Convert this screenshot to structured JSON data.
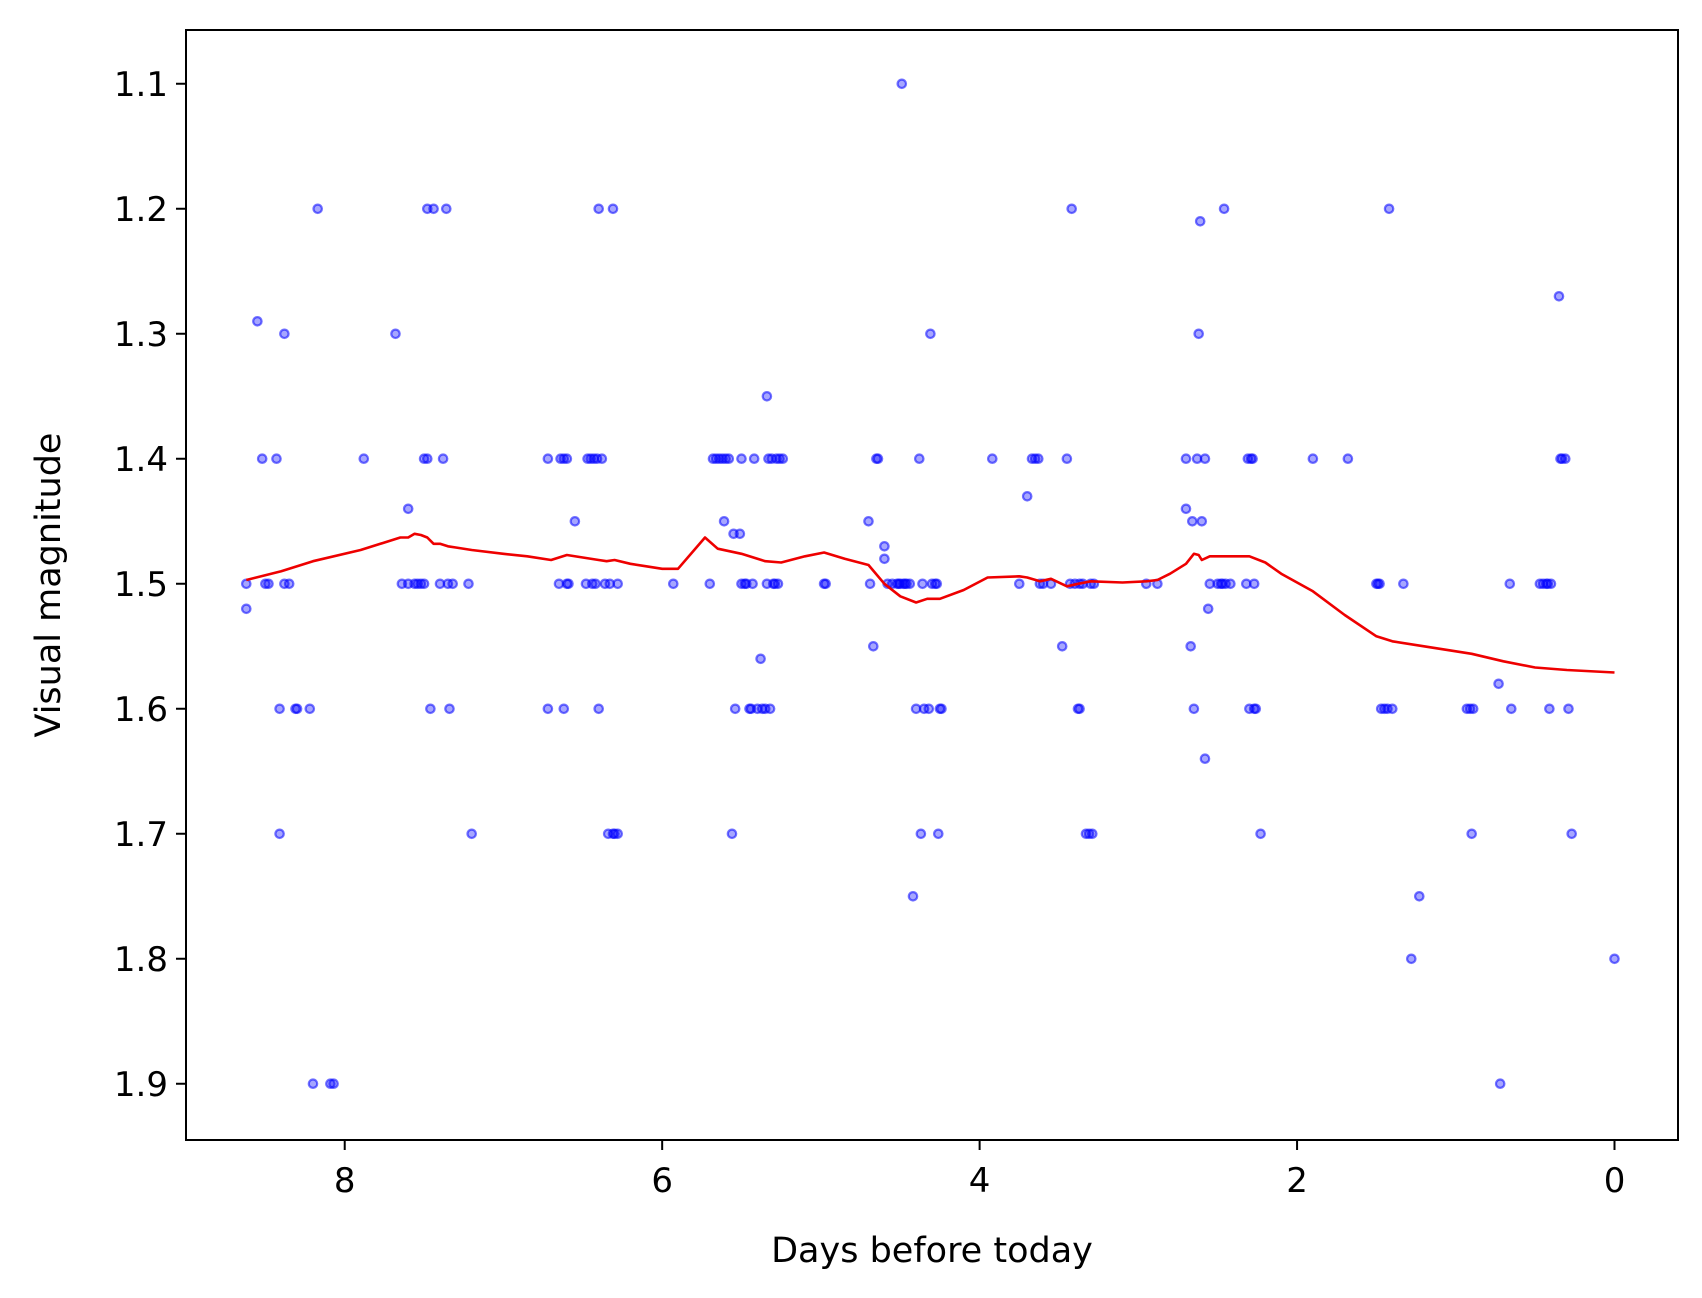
{
  "chart_data": {
    "type": "scatter",
    "xlabel": "Days before today",
    "ylabel": "Visual magnitude",
    "xlim": [
      9.0,
      -0.4
    ],
    "ylim": [
      1.945,
      1.057
    ],
    "x_inverted": true,
    "y_inverted": true,
    "grid": false,
    "x_ticks": [
      8,
      6,
      4,
      2,
      0
    ],
    "y_ticks": [
      1.1,
      1.2,
      1.3,
      1.4,
      1.5,
      1.6,
      1.7,
      1.8,
      1.9
    ],
    "x_tick_labels": [
      "8",
      "6",
      "4",
      "2",
      "0"
    ],
    "y_tick_labels": [
      "1.1",
      "1.2",
      "1.3",
      "1.4",
      "1.5",
      "1.6",
      "1.7",
      "1.8",
      "1.9"
    ],
    "series": [
      {
        "kind": "scatter",
        "color": "#0000ff",
        "points": [
          [
            8.62,
            1.5
          ],
          [
            8.62,
            1.52
          ],
          [
            8.55,
            1.29
          ],
          [
            8.52,
            1.4
          ],
          [
            8.5,
            1.5
          ],
          [
            8.48,
            1.5
          ],
          [
            8.43,
            1.4
          ],
          [
            8.41,
            1.7
          ],
          [
            8.41,
            1.6
          ],
          [
            8.38,
            1.3
          ],
          [
            8.38,
            1.5
          ],
          [
            8.35,
            1.5
          ],
          [
            8.31,
            1.6
          ],
          [
            8.3,
            1.6
          ],
          [
            8.22,
            1.6
          ],
          [
            8.2,
            1.9
          ],
          [
            8.17,
            1.2
          ],
          [
            8.09,
            1.9
          ],
          [
            8.07,
            1.9
          ],
          [
            7.88,
            1.4
          ],
          [
            7.68,
            1.3
          ],
          [
            7.64,
            1.5
          ],
          [
            7.6,
            1.44
          ],
          [
            7.6,
            1.5
          ],
          [
            7.56,
            1.5
          ],
          [
            7.54,
            1.5
          ],
          [
            7.52,
            1.5
          ],
          [
            7.5,
            1.5
          ],
          [
            7.5,
            1.4
          ],
          [
            7.48,
            1.4
          ],
          [
            7.48,
            1.2
          ],
          [
            7.46,
            1.6
          ],
          [
            7.44,
            1.2
          ],
          [
            7.4,
            1.5
          ],
          [
            7.38,
            1.4
          ],
          [
            7.36,
            1.2
          ],
          [
            7.35,
            1.5
          ],
          [
            7.34,
            1.6
          ],
          [
            7.32,
            1.5
          ],
          [
            7.22,
            1.5
          ],
          [
            7.2,
            1.7
          ],
          [
            6.72,
            1.4
          ],
          [
            6.72,
            1.6
          ],
          [
            6.65,
            1.5
          ],
          [
            6.64,
            1.4
          ],
          [
            6.62,
            1.4
          ],
          [
            6.62,
            1.6
          ],
          [
            6.6,
            1.5
          ],
          [
            6.6,
            1.4
          ],
          [
            6.59,
            1.5
          ],
          [
            6.55,
            1.45
          ],
          [
            6.48,
            1.5
          ],
          [
            6.47,
            1.4
          ],
          [
            6.45,
            1.4
          ],
          [
            6.44,
            1.5
          ],
          [
            6.43,
            1.4
          ],
          [
            6.42,
            1.5
          ],
          [
            6.41,
            1.4
          ],
          [
            6.4,
            1.6
          ],
          [
            6.4,
            1.2
          ],
          [
            6.38,
            1.4
          ],
          [
            6.36,
            1.5
          ],
          [
            6.34,
            1.7
          ],
          [
            6.33,
            1.5
          ],
          [
            6.31,
            1.2
          ],
          [
            6.31,
            1.7
          ],
          [
            6.3,
            1.7
          ],
          [
            6.28,
            1.5
          ],
          [
            6.28,
            1.7
          ],
          [
            5.93,
            1.5
          ],
          [
            5.7,
            1.5
          ],
          [
            5.68,
            1.4
          ],
          [
            5.66,
            1.4
          ],
          [
            5.64,
            1.4
          ],
          [
            5.62,
            1.4
          ],
          [
            5.61,
            1.45
          ],
          [
            5.6,
            1.4
          ],
          [
            5.58,
            1.4
          ],
          [
            5.56,
            1.7
          ],
          [
            5.55,
            1.46
          ],
          [
            5.54,
            1.6
          ],
          [
            5.51,
            1.46
          ],
          [
            5.5,
            1.5
          ],
          [
            5.5,
            1.4
          ],
          [
            5.48,
            1.5
          ],
          [
            5.47,
            1.5
          ],
          [
            5.45,
            1.6
          ],
          [
            5.44,
            1.6
          ],
          [
            5.43,
            1.5
          ],
          [
            5.42,
            1.4
          ],
          [
            5.4,
            1.6
          ],
          [
            5.38,
            1.56
          ],
          [
            5.37,
            1.6
          ],
          [
            5.35,
            1.6
          ],
          [
            5.34,
            1.35
          ],
          [
            5.34,
            1.5
          ],
          [
            5.33,
            1.4
          ],
          [
            5.32,
            1.6
          ],
          [
            5.31,
            1.4
          ],
          [
            5.3,
            1.5
          ],
          [
            5.29,
            1.5
          ],
          [
            5.28,
            1.4
          ],
          [
            5.27,
            1.5
          ],
          [
            5.26,
            1.4
          ],
          [
            5.24,
            1.4
          ],
          [
            4.98,
            1.5
          ],
          [
            4.97,
            1.5
          ],
          [
            4.7,
            1.45
          ],
          [
            4.69,
            1.5
          ],
          [
            4.67,
            1.55
          ],
          [
            4.65,
            1.4
          ],
          [
            4.64,
            1.4
          ],
          [
            4.6,
            1.47
          ],
          [
            4.6,
            1.48
          ],
          [
            4.58,
            1.5
          ],
          [
            4.55,
            1.5
          ],
          [
            4.52,
            1.5
          ],
          [
            4.51,
            1.5
          ],
          [
            4.5,
            1.5
          ],
          [
            4.49,
            1.1
          ],
          [
            4.48,
            1.5
          ],
          [
            4.47,
            1.5
          ],
          [
            4.46,
            1.5
          ],
          [
            4.44,
            1.5
          ],
          [
            4.42,
            1.75
          ],
          [
            4.4,
            1.6
          ],
          [
            4.38,
            1.4
          ],
          [
            4.37,
            1.7
          ],
          [
            4.36,
            1.5
          ],
          [
            4.35,
            1.6
          ],
          [
            4.32,
            1.6
          ],
          [
            4.31,
            1.3
          ],
          [
            4.3,
            1.5
          ],
          [
            4.28,
            1.5
          ],
          [
            4.27,
            1.5
          ],
          [
            4.26,
            1.7
          ],
          [
            4.25,
            1.6
          ],
          [
            4.24,
            1.6
          ],
          [
            3.92,
            1.4
          ],
          [
            3.75,
            1.5
          ],
          [
            3.7,
            1.43
          ],
          [
            3.67,
            1.4
          ],
          [
            3.65,
            1.4
          ],
          [
            3.63,
            1.4
          ],
          [
            3.62,
            1.5
          ],
          [
            3.6,
            1.5
          ],
          [
            3.55,
            1.5
          ],
          [
            3.48,
            1.55
          ],
          [
            3.45,
            1.4
          ],
          [
            3.43,
            1.5
          ],
          [
            3.42,
            1.2
          ],
          [
            3.4,
            1.5
          ],
          [
            3.38,
            1.6
          ],
          [
            3.37,
            1.5
          ],
          [
            3.37,
            1.6
          ],
          [
            3.35,
            1.5
          ],
          [
            3.33,
            1.7
          ],
          [
            3.31,
            1.7
          ],
          [
            3.3,
            1.5
          ],
          [
            3.29,
            1.7
          ],
          [
            3.28,
            1.5
          ],
          [
            2.95,
            1.5
          ],
          [
            2.88,
            1.5
          ],
          [
            2.7,
            1.44
          ],
          [
            2.7,
            1.4
          ],
          [
            2.67,
            1.55
          ],
          [
            2.66,
            1.45
          ],
          [
            2.65,
            1.6
          ],
          [
            2.63,
            1.4
          ],
          [
            2.62,
            1.3
          ],
          [
            2.61,
            1.21
          ],
          [
            2.6,
            1.45
          ],
          [
            2.58,
            1.4
          ],
          [
            2.58,
            1.64
          ],
          [
            2.56,
            1.52
          ],
          [
            2.55,
            1.5
          ],
          [
            2.5,
            1.5
          ],
          [
            2.48,
            1.5
          ],
          [
            2.47,
            1.5
          ],
          [
            2.46,
            1.2
          ],
          [
            2.45,
            1.5
          ],
          [
            2.42,
            1.5
          ],
          [
            2.32,
            1.5
          ],
          [
            2.31,
            1.4
          ],
          [
            2.3,
            1.6
          ],
          [
            2.29,
            1.4
          ],
          [
            2.28,
            1.4
          ],
          [
            2.27,
            1.5
          ],
          [
            2.27,
            1.6
          ],
          [
            2.26,
            1.6
          ],
          [
            2.23,
            1.7
          ],
          [
            1.9,
            1.4
          ],
          [
            1.68,
            1.4
          ],
          [
            1.5,
            1.5
          ],
          [
            1.49,
            1.5
          ],
          [
            1.48,
            1.5
          ],
          [
            1.47,
            1.6
          ],
          [
            1.45,
            1.6
          ],
          [
            1.43,
            1.6
          ],
          [
            1.42,
            1.2
          ],
          [
            1.4,
            1.6
          ],
          [
            1.33,
            1.5
          ],
          [
            1.28,
            1.8
          ],
          [
            1.23,
            1.75
          ],
          [
            0.93,
            1.6
          ],
          [
            0.91,
            1.6
          ],
          [
            0.9,
            1.7
          ],
          [
            0.89,
            1.6
          ],
          [
            0.73,
            1.58
          ],
          [
            0.72,
            1.9
          ],
          [
            0.66,
            1.5
          ],
          [
            0.65,
            1.6
          ],
          [
            0.47,
            1.5
          ],
          [
            0.45,
            1.5
          ],
          [
            0.43,
            1.5
          ],
          [
            0.42,
            1.5
          ],
          [
            0.41,
            1.6
          ],
          [
            0.4,
            1.5
          ],
          [
            0.35,
            1.27
          ],
          [
            0.34,
            1.4
          ],
          [
            0.33,
            1.4
          ],
          [
            0.31,
            1.4
          ],
          [
            0.29,
            1.6
          ],
          [
            0.27,
            1.7
          ],
          [
            0.0,
            1.8
          ]
        ]
      },
      {
        "kind": "line",
        "color": "#ee0000",
        "points": [
          [
            8.62,
            1.497
          ],
          [
            8.4,
            1.49
          ],
          [
            8.2,
            1.482
          ],
          [
            7.9,
            1.473
          ],
          [
            7.65,
            1.463
          ],
          [
            7.6,
            1.463
          ],
          [
            7.56,
            1.46
          ],
          [
            7.52,
            1.461
          ],
          [
            7.48,
            1.463
          ],
          [
            7.44,
            1.468
          ],
          [
            7.4,
            1.468
          ],
          [
            7.35,
            1.47
          ],
          [
            7.3,
            1.471
          ],
          [
            7.2,
            1.473
          ],
          [
            7.0,
            1.476
          ],
          [
            6.85,
            1.478
          ],
          [
            6.7,
            1.481
          ],
          [
            6.6,
            1.477
          ],
          [
            6.5,
            1.479
          ],
          [
            6.4,
            1.481
          ],
          [
            6.35,
            1.482
          ],
          [
            6.3,
            1.481
          ],
          [
            6.2,
            1.484
          ],
          [
            6.1,
            1.486
          ],
          [
            6.0,
            1.488
          ],
          [
            5.9,
            1.488
          ],
          [
            5.73,
            1.463
          ],
          [
            5.65,
            1.472
          ],
          [
            5.5,
            1.476
          ],
          [
            5.35,
            1.482
          ],
          [
            5.25,
            1.483
          ],
          [
            5.1,
            1.478
          ],
          [
            4.98,
            1.475
          ],
          [
            4.85,
            1.48
          ],
          [
            4.7,
            1.485
          ],
          [
            4.6,
            1.5
          ],
          [
            4.5,
            1.51
          ],
          [
            4.4,
            1.515
          ],
          [
            4.33,
            1.512
          ],
          [
            4.25,
            1.512
          ],
          [
            4.1,
            1.505
          ],
          [
            3.95,
            1.495
          ],
          [
            3.75,
            1.494
          ],
          [
            3.7,
            1.495
          ],
          [
            3.62,
            1.498
          ],
          [
            3.55,
            1.496
          ],
          [
            3.45,
            1.502
          ],
          [
            3.38,
            1.5
          ],
          [
            3.3,
            1.498
          ],
          [
            3.1,
            1.499
          ],
          [
            2.95,
            1.498
          ],
          [
            2.88,
            1.497
          ],
          [
            2.8,
            1.492
          ],
          [
            2.7,
            1.484
          ],
          [
            2.65,
            1.476
          ],
          [
            2.62,
            1.477
          ],
          [
            2.6,
            1.481
          ],
          [
            2.55,
            1.478
          ],
          [
            2.5,
            1.478
          ],
          [
            2.4,
            1.478
          ],
          [
            2.3,
            1.478
          ],
          [
            2.2,
            1.483
          ],
          [
            2.1,
            1.492
          ],
          [
            1.9,
            1.506
          ],
          [
            1.7,
            1.525
          ],
          [
            1.5,
            1.542
          ],
          [
            1.4,
            1.546
          ],
          [
            1.2,
            1.55
          ],
          [
            0.9,
            1.556
          ],
          [
            0.7,
            1.562
          ],
          [
            0.5,
            1.567
          ],
          [
            0.3,
            1.569
          ],
          [
            0.0,
            1.571
          ]
        ]
      }
    ]
  }
}
